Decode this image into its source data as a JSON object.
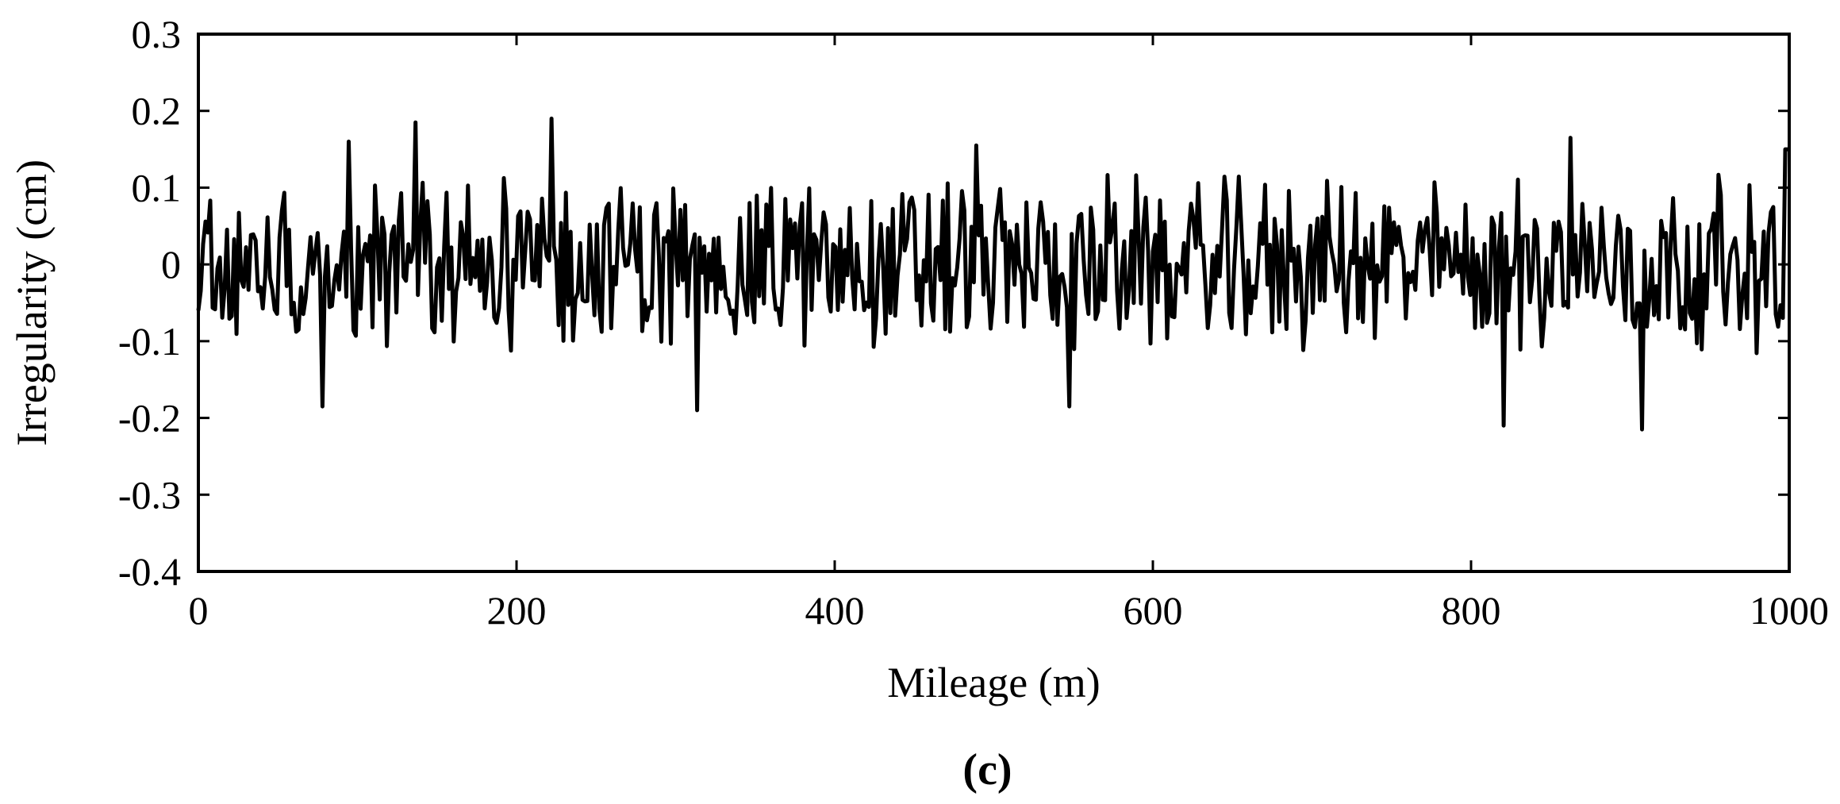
{
  "chart_data": {
    "type": "line",
    "title": "",
    "xlabel": "Mileage (m)",
    "ylabel": "Irregularity (cm)",
    "panel_label": "(c)",
    "xlim": [
      0,
      1000
    ],
    "ylim": [
      -0.4,
      0.3
    ],
    "xticks": [
      0,
      200,
      400,
      600,
      800,
      1000
    ],
    "xtick_labels": [
      "0",
      "200",
      "400",
      "600",
      "800",
      "1000"
    ],
    "yticks": [
      0.3,
      0.2,
      0.1,
      0,
      -0.1,
      -0.2,
      -0.3,
      -0.4
    ],
    "ytick_labels": [
      "0.3",
      "0.2",
      "0.1",
      "0",
      "-0.1",
      "-0.2",
      "-0.3",
      "-0.4"
    ],
    "grid": false,
    "legend": "none",
    "line_color": "#000000",
    "series": [
      {
        "values_note_free": true,
        "x": [
          0,
          1000
        ],
        "y": [
          -0.06,
          0.15
        ],
        "sample_step_m": 1.5,
        "extrema": [
          {
            "x": 95,
            "y": 0.16
          },
          {
            "x": 137,
            "y": 0.185
          },
          {
            "x": 222,
            "y": 0.19
          },
          {
            "x": 489,
            "y": 0.155
          },
          {
            "x": 862,
            "y": 0.165
          },
          {
            "x": 998,
            "y": 0.15
          },
          {
            "x": 78,
            "y": -0.185
          },
          {
            "x": 313,
            "y": -0.19
          },
          {
            "x": 547,
            "y": -0.185
          },
          {
            "x": 820,
            "y": -0.21
          },
          {
            "x": 907,
            "y": -0.215
          }
        ]
      }
    ]
  }
}
